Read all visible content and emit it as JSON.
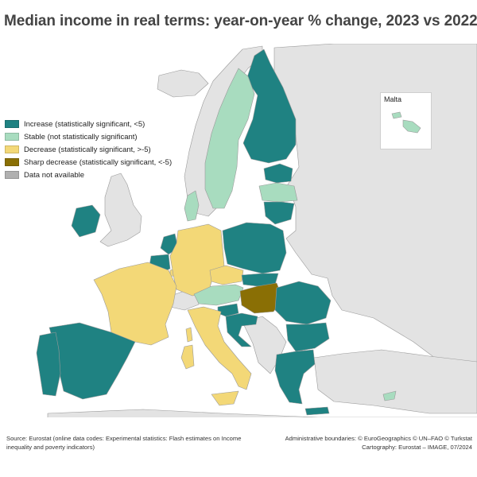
{
  "title": "Median income in real terms: year-on-year % change, 2023 vs 2022",
  "colors": {
    "increase": "#1f8282",
    "stable": "#a8dcbf",
    "decrease": "#f3d877",
    "sharp_decrease": "#8a6f05",
    "not_available": "#b0b0b0",
    "non_eu": "#e3e3e3",
    "sea": "#ffffff",
    "border": "#9a9a9a"
  },
  "legend": [
    {
      "key": "increase",
      "label": "Increase (statistically significant, <5)"
    },
    {
      "key": "stable",
      "label": "Stable (not statistically significant)"
    },
    {
      "key": "decrease",
      "label": "Decrease (statistically significant, >-5)"
    },
    {
      "key": "sharp_decrease",
      "label": "Sharp decrease (statistically significant, <-5)"
    },
    {
      "key": "not_available",
      "label": "Data not available"
    }
  ],
  "inset": {
    "label": "Malta",
    "category": "stable"
  },
  "countries": {
    "Finland": "increase",
    "Sweden": "stable",
    "Estonia": "increase",
    "Latvia": "stable",
    "Lithuania": "increase",
    "Denmark": "stable",
    "Ireland": "increase",
    "Netherlands": "increase",
    "Belgium": "increase",
    "Luxembourg": "decrease",
    "Germany": "decrease",
    "Poland": "increase",
    "Czechia": "decrease",
    "Slovakia": "increase",
    "Austria": "stable",
    "Hungary": "sharp_decrease",
    "Slovenia": "increase",
    "Croatia": "increase",
    "Romania": "increase",
    "Bulgaria": "increase",
    "Greece": "increase",
    "France": "decrease",
    "Spain": "increase",
    "Portugal": "increase",
    "Italy": "decrease",
    "Cyprus": "stable",
    "Malta": "stable"
  },
  "footer": {
    "source": "Source: Eurostat (online data codes: Experimental statistics: Flash estimates on Income inequality and poverty indicators)",
    "boundaries": "Administrative boundaries: © EuroGeographics © UN–FAO © Turkstat",
    "cartography": "Cartography: Eurostat – IMAGE, 07/2024"
  }
}
